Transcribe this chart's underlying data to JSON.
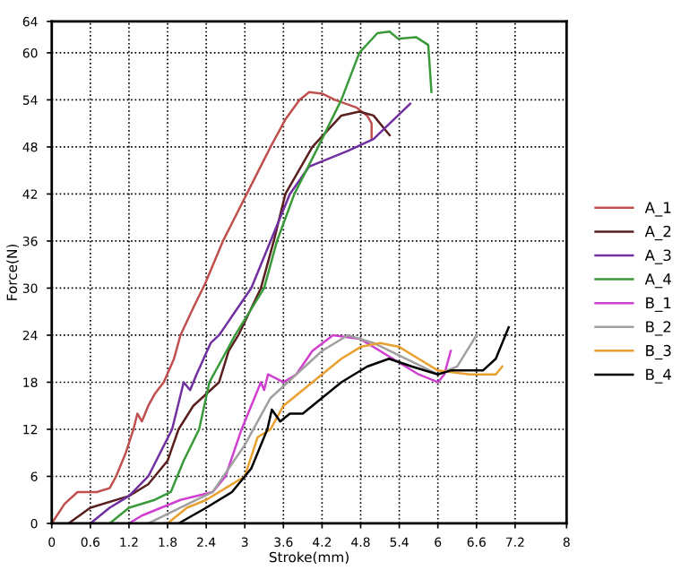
{
  "chart_data": {
    "type": "line",
    "xlabel": "Stroke(mm)",
    "ylabel": "Force(N)",
    "xlim": [
      0,
      8
    ],
    "ylim": [
      0,
      64
    ],
    "xticks": [
      0,
      0.6,
      1.2,
      1.8,
      2.4,
      3,
      3.6,
      4.2,
      4.8,
      5.4,
      6,
      6.6,
      7.2,
      8
    ],
    "yticks": [
      0,
      6,
      12,
      18,
      24,
      30,
      36,
      42,
      48,
      54,
      60,
      64
    ],
    "grid": true,
    "legend": "right",
    "line_style": "solid",
    "marker": "none",
    "series": [
      {
        "name": "A_1",
        "color": "#c0504d",
        "x": [
          0,
          0.2,
          0.4,
          0.7,
          0.9,
          1.0,
          1.15,
          1.27,
          1.33,
          1.4,
          1.5,
          1.6,
          1.74,
          1.9,
          2.0,
          2.2,
          2.38,
          2.66,
          3.03,
          3.4,
          3.63,
          3.85,
          4.0,
          4.2,
          4.4,
          4.74,
          4.9,
          4.97,
          4.97
        ],
        "values": [
          0,
          2.5,
          4,
          4,
          4.5,
          6,
          9,
          12,
          14,
          13,
          15,
          16.5,
          18,
          21,
          24,
          27.5,
          30.5,
          36,
          42,
          48,
          51.5,
          54,
          55,
          54.8,
          54,
          53,
          52,
          51,
          49
        ]
      },
      {
        "name": "A_2",
        "color": "#5a1f1f",
        "x": [
          0.26,
          0.6,
          1.2,
          1.5,
          1.8,
          1.97,
          2.2,
          2.6,
          2.75,
          2.9,
          3.25,
          3.45,
          3.63,
          4.05,
          4.5,
          4.78,
          5.0,
          5.2,
          5.25
        ],
        "values": [
          0,
          2,
          3.5,
          5,
          8,
          12,
          15,
          18,
          22,
          24,
          30,
          36,
          42,
          48,
          52,
          52.5,
          52,
          50,
          49.5
        ]
      },
      {
        "name": "A_3",
        "color": "#7030a0",
        "x": [
          0.6,
          0.9,
          1.2,
          1.5,
          1.87,
          2.05,
          2.15,
          2.25,
          2.47,
          2.6,
          3.1,
          3.4,
          3.7,
          4.0,
          4.6,
          5.0,
          5.57
        ],
        "values": [
          0,
          2,
          3.5,
          6,
          12,
          18,
          17,
          19,
          23,
          24,
          30,
          36,
          42,
          45.5,
          47.5,
          49,
          53.5
        ]
      },
      {
        "name": "A_4",
        "color": "#3a9a3a",
        "x": [
          0.9,
          1.2,
          1.6,
          1.85,
          2.05,
          2.29,
          2.45,
          2.85,
          3.3,
          3.5,
          3.77,
          4.14,
          4.5,
          4.78,
          5.06,
          5.25,
          5.38,
          5.66,
          5.85,
          5.9
        ],
        "values": [
          0,
          2,
          3,
          4,
          8,
          12,
          18,
          24,
          30,
          36,
          42,
          48,
          54,
          60,
          62.5,
          62.7,
          61.8,
          62,
          61,
          55
        ]
      },
      {
        "name": "B_1",
        "color": "#d040d0",
        "x": [
          1.2,
          1.4,
          2.0,
          2.5,
          2.7,
          2.95,
          3.1,
          3.25,
          3.3,
          3.36,
          3.6,
          3.8,
          4.05,
          4.37,
          4.8,
          5.3,
          5.7,
          6.0,
          6.1,
          6.2
        ],
        "values": [
          0,
          1,
          3,
          4,
          6,
          12,
          15,
          18,
          17,
          19,
          18,
          19,
          22,
          24,
          23.5,
          21,
          19,
          18,
          19,
          22
        ]
      },
      {
        "name": "B_2",
        "color": "#a0a0a0",
        "x": [
          1.5,
          2.0,
          2.5,
          3.0,
          3.4,
          3.8,
          4.2,
          4.6,
          5.0,
          5.5,
          6.0,
          6.3,
          6.6
        ],
        "values": [
          0,
          2,
          4,
          10,
          16,
          19,
          22,
          24,
          23,
          21,
          19,
          20,
          24
        ]
      },
      {
        "name": "B_3",
        "color": "#e8a030",
        "x": [
          1.8,
          2.1,
          2.4,
          3.0,
          3.2,
          3.4,
          3.6,
          3.9,
          4.2,
          4.5,
          4.8,
          5.1,
          5.4,
          5.7,
          6.0,
          6.5,
          6.9,
          7.0
        ],
        "values": [
          0,
          2,
          3,
          6,
          11,
          12,
          15,
          17,
          19,
          21,
          22.5,
          23,
          22.5,
          21,
          19.5,
          19,
          19,
          20
        ]
      },
      {
        "name": "B_4",
        "color": "#000000",
        "x": [
          1.97,
          2.4,
          2.8,
          3.1,
          3.35,
          3.42,
          3.55,
          3.7,
          3.9,
          4.2,
          4.5,
          4.9,
          5.24,
          5.6,
          6.0,
          6.2,
          6.7,
          6.9,
          7.1
        ],
        "values": [
          0,
          2,
          4,
          7,
          12,
          14.5,
          13,
          14,
          14,
          16,
          18,
          20,
          21,
          20,
          19,
          19.5,
          19.5,
          21,
          25
        ]
      }
    ]
  }
}
